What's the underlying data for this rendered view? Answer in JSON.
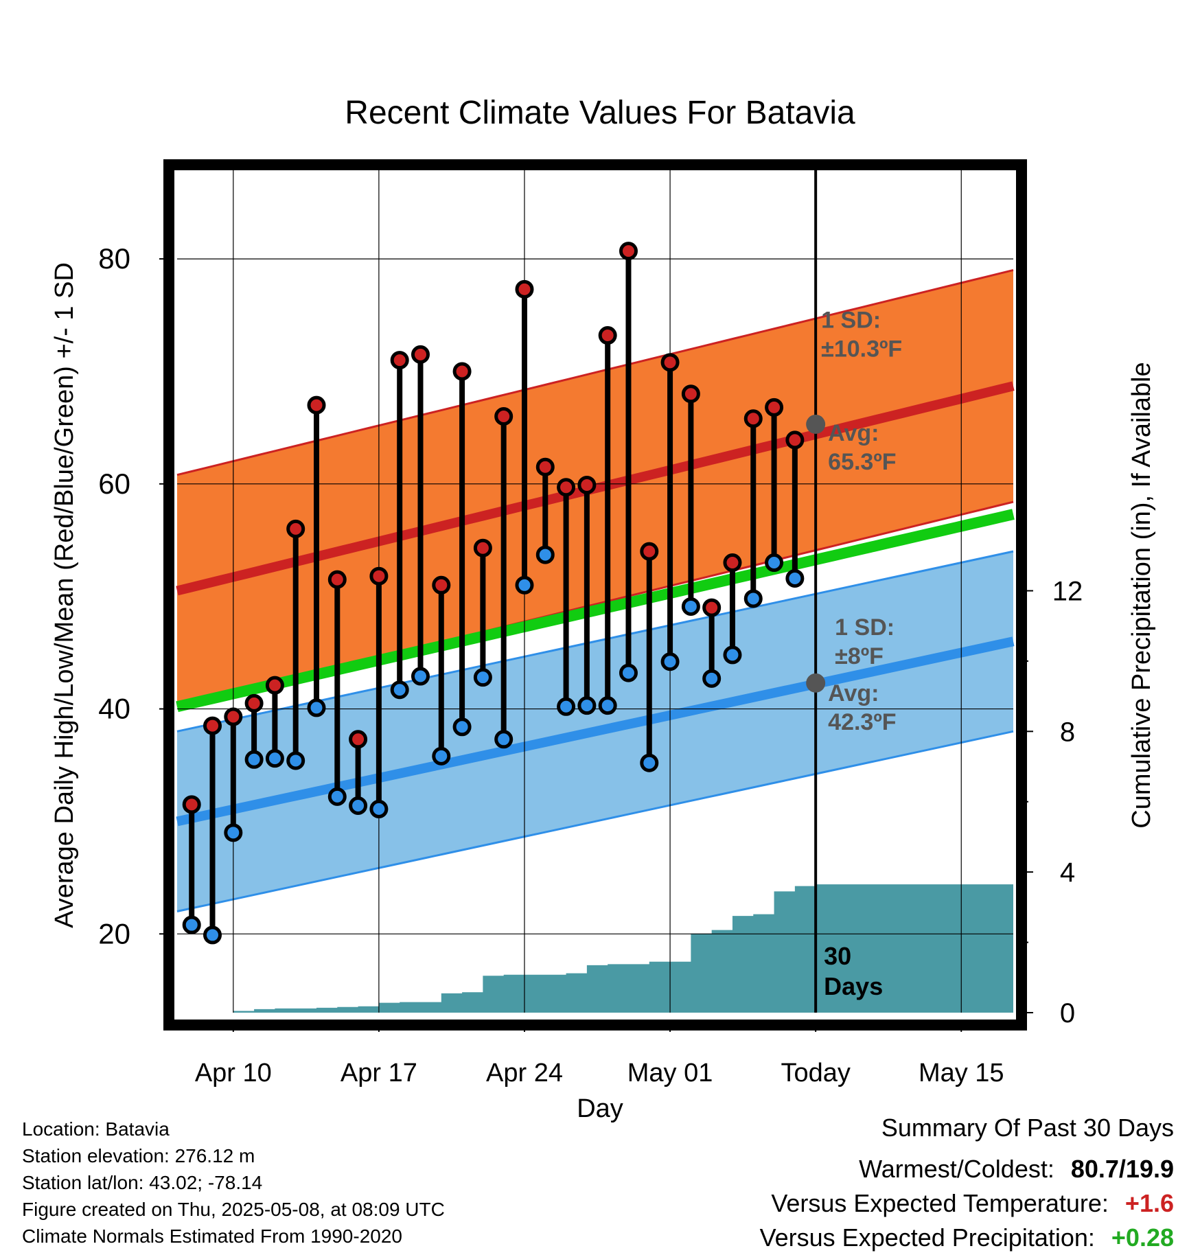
{
  "chart_data": {
    "type": "line",
    "title": "Recent Climate Values For Batavia",
    "xlabel": "Day",
    "ylabel": "Average Daily High/Low/Mean (Red/Blue/Green) +/- 1 SD",
    "y2label": "Cumulative Precipitation (in), If Available",
    "x_ticks": [
      "Apr 10",
      "Apr 17",
      "Apr 24",
      "May 01",
      "Today",
      "May 15"
    ],
    "y_ticks": [
      20,
      40,
      60,
      80
    ],
    "y2_ticks": [
      0,
      4,
      8,
      12
    ],
    "ylim": [
      13,
      88
    ],
    "y2lim": [
      0,
      24
    ],
    "x_days_from_apr10": [
      -2,
      -1,
      0,
      1,
      2,
      3,
      4,
      5,
      6,
      7,
      8,
      9,
      10,
      11,
      12,
      13,
      14,
      15,
      16,
      17,
      18,
      19,
      20,
      21,
      22,
      23,
      24,
      25,
      26,
      27
    ],
    "today_day": 28,
    "xlim_days": [
      -2.7,
      37.5
    ],
    "series": [
      {
        "name": "High",
        "color": "#cc2222",
        "values": [
          31.5,
          38.5,
          39.3,
          40.5,
          42.1,
          56.0,
          67.0,
          51.5,
          37.3,
          51.8,
          71.0,
          71.5,
          51.0,
          70.0,
          54.3,
          66.0,
          77.3,
          61.5,
          59.7,
          59.9,
          73.2,
          80.7,
          54.0,
          70.8,
          68.0,
          49.0,
          53.0,
          65.8,
          66.8,
          63.9
        ]
      },
      {
        "name": "Low",
        "color": "#2f8fe8",
        "values": [
          20.8,
          19.9,
          29.0,
          35.5,
          35.6,
          35.4,
          40.1,
          32.2,
          31.4,
          31.1,
          41.7,
          42.9,
          35.8,
          38.4,
          42.8,
          37.3,
          51.0,
          53.7,
          40.2,
          40.3,
          40.3,
          43.2,
          35.2,
          44.2,
          49.1,
          42.7,
          44.8,
          49.8,
          53.0,
          51.6
        ]
      }
    ],
    "normals": {
      "high_mean": {
        "start": 50.5,
        "end": 68.7,
        "today": 65.3
      },
      "low_mean": {
        "start": 30.0,
        "end": 46.0,
        "today": 42.3
      },
      "mean": {
        "start": 40.2,
        "end": 57.3
      },
      "high_sd": 10.3,
      "low_sd": 8
    },
    "precip_cumulative": {
      "days": [
        0,
        1,
        2,
        3,
        4,
        5,
        6,
        7,
        8,
        9,
        10,
        11,
        12,
        13,
        14,
        15,
        16,
        17,
        18,
        19,
        20,
        21,
        22,
        23,
        24,
        25,
        26,
        27,
        28,
        37.5
      ],
      "values": [
        0.05,
        0.1,
        0.12,
        0.12,
        0.14,
        0.16,
        0.18,
        0.28,
        0.3,
        0.3,
        0.55,
        0.58,
        1.05,
        1.08,
        1.08,
        1.08,
        1.12,
        1.35,
        1.38,
        1.38,
        1.45,
        1.45,
        2.25,
        2.35,
        2.75,
        2.8,
        3.45,
        3.6,
        3.65,
        3.65
      ],
      "color": "#4a9aa4"
    },
    "annotations": {
      "high_sd_label": "1 SD:",
      "high_sd_value": "±10.3ºF",
      "high_avg_label": "Avg:",
      "high_avg_value": "65.3ºF",
      "low_sd_label": "1 SD:",
      "low_sd_value": "±8ºF",
      "low_avg_label": "Avg:",
      "low_avg_value": "42.3ºF",
      "days_label_1": "30",
      "days_label_2": "Days"
    },
    "grid": true
  },
  "info": {
    "location": "Location: Batavia",
    "elevation": "Station elevation: 276.12 m",
    "latlon": "Station lat/lon: 43.02; -78.14",
    "created": "Figure created on Thu, 2025-05-08, at 08:09 UTC",
    "normals": "Climate Normals Estimated From 1990-2020"
  },
  "summary": {
    "title": "Summary Of Past 30 Days",
    "warm_cold_label": "Warmest/Coldest:",
    "warm_cold_value": "80.7/19.9",
    "temp_label": "Versus Expected Temperature:",
    "temp_value": "+1.6",
    "temp_color": "#cc2222",
    "precip_label": "Versus Expected Precipitation:",
    "precip_value": "+0.28",
    "precip_color": "#22aa22"
  }
}
